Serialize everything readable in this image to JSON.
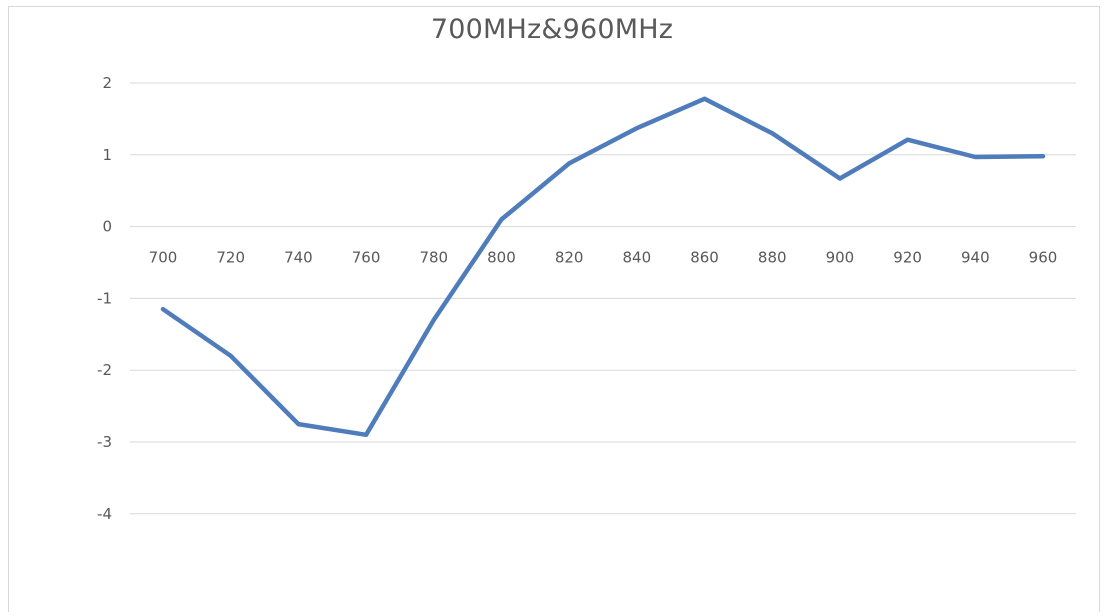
{
  "chart_data": {
    "type": "line",
    "title": "700MHz&960MHz",
    "xlabel": "",
    "ylabel": "",
    "categories": [
      "700",
      "720",
      "740",
      "760",
      "780",
      "800",
      "820",
      "840",
      "860",
      "880",
      "900",
      "920",
      "940",
      "960"
    ],
    "series": [
      {
        "values": [
          -1.15,
          -1.8,
          -2.75,
          -2.9,
          -1.3,
          0.1,
          0.88,
          1.37,
          1.78,
          1.3,
          0.67,
          1.21,
          0.97,
          0.98
        ],
        "color": "#4f7cba"
      }
    ],
    "yticks": [
      2,
      1,
      0,
      -1,
      -2,
      -3,
      -4
    ],
    "ylim": [
      -5,
      2
    ],
    "grid": true,
    "legend": "none"
  }
}
